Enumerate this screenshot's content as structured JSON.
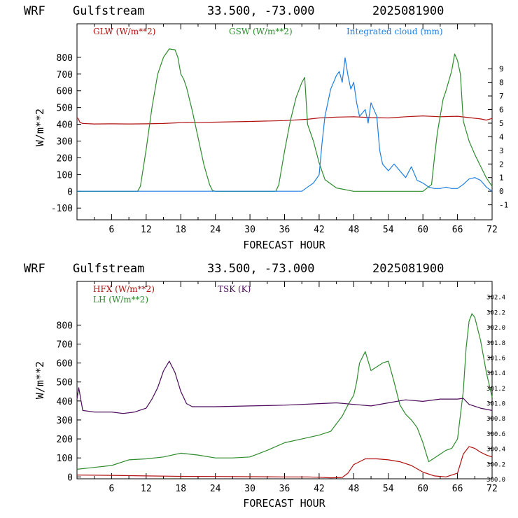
{
  "panels": [
    {
      "header": {
        "model": "WRF",
        "site": "Gulfstream",
        "coords": "33.500, -73.000",
        "date": "2025081900"
      },
      "xlabel": "FORECAST HOUR",
      "ylabel": "W/m**2"
    },
    {
      "header": {
        "model": "WRF",
        "site": "Gulfstream",
        "coords": "33.500, -73.000",
        "date": "2025081900"
      },
      "xlabel": "FORECAST HOUR",
      "ylabel": "W/m**2"
    }
  ],
  "chart_data": [
    {
      "type": "line",
      "xlabel": "FORECAST HOUR",
      "ylabel": "W/m**2",
      "xlim": [
        0,
        72
      ],
      "ylim": [
        -170,
        1000
      ],
      "xticks": [
        6,
        12,
        18,
        24,
        30,
        36,
        42,
        48,
        54,
        60,
        66,
        72
      ],
      "yticks": [
        -100,
        0,
        100,
        200,
        300,
        400,
        500,
        600,
        700,
        800
      ],
      "y2lim": [
        -2.1,
        12.3
      ],
      "y2ticks": [
        -1,
        0,
        1,
        2,
        3,
        4,
        5,
        6,
        7,
        8,
        9
      ],
      "legend_placement": "top",
      "series": [
        {
          "name": "GLW (W/m**2)",
          "color": "#b01010",
          "axis": "left",
          "x": [
            0,
            0.2,
            0.5,
            1,
            3,
            6,
            9,
            12,
            15,
            18,
            19,
            20,
            21,
            24,
            30,
            36,
            40,
            42,
            45,
            48,
            51,
            54,
            57,
            60,
            63,
            66,
            68,
            70,
            71,
            72
          ],
          "y": [
            440,
            435,
            412,
            405,
            402,
            403,
            402,
            403,
            405,
            410,
            411,
            412,
            410,
            413,
            417,
            422,
            430,
            438,
            443,
            445,
            440,
            438,
            445,
            450,
            445,
            448,
            440,
            432,
            425,
            435
          ]
        },
        {
          "name": "GSW (W/m**2)",
          "color": "#2e8b2e",
          "axis": "left",
          "x": [
            0,
            10.5,
            11,
            12,
            13,
            14,
            15,
            16,
            17,
            17.5,
            18,
            18.5,
            19,
            20,
            21,
            22,
            23,
            23.5,
            24,
            34.5,
            35,
            36,
            37,
            38,
            39,
            39.5,
            40,
            41,
            42,
            43,
            45,
            48,
            51,
            54,
            57,
            60,
            61.5,
            62,
            62.5,
            63,
            63.5,
            64,
            65,
            65.5,
            66,
            66.5,
            67,
            68,
            69,
            70,
            71,
            72
          ],
          "y": [
            0,
            0,
            30,
            250,
            500,
            700,
            800,
            850,
            845,
            800,
            700,
            670,
            620,
            480,
            320,
            160,
            40,
            5,
            0,
            0,
            40,
            240,
            420,
            560,
            650,
            680,
            400,
            300,
            170,
            70,
            20,
            0,
            0,
            0,
            0,
            0,
            40,
            200,
            350,
            450,
            550,
            600,
            720,
            820,
            780,
            700,
            420,
            300,
            220,
            150,
            80,
            30
          ]
        },
        {
          "name": "Integrated cloud (mm)",
          "color": "#1e7fe0",
          "axis": "right",
          "x": [
            0,
            39,
            40,
            41,
            42,
            42.5,
            43,
            44,
            45,
            45.5,
            46,
            46.5,
            47,
            47.5,
            48,
            48.5,
            49,
            50,
            50.5,
            51,
            52,
            52.5,
            53,
            54,
            55,
            56,
            57,
            58,
            59,
            60,
            61,
            62,
            63,
            64,
            65,
            66,
            67,
            68,
            69,
            70,
            71,
            72
          ],
          "y": [
            0,
            0,
            0.3,
            0.6,
            1.2,
            3.5,
            5.5,
            7.5,
            8.5,
            8.8,
            8.0,
            9.8,
            8.5,
            7.5,
            8.0,
            6.5,
            5.5,
            6.0,
            5.0,
            6.5,
            5.5,
            3.0,
            2.0,
            1.5,
            2.0,
            1.5,
            1.0,
            1.8,
            0.8,
            0.6,
            0.3,
            0.2,
            0.2,
            0.3,
            0.2,
            0.2,
            0.5,
            0.9,
            1.0,
            0.8,
            0.3,
            0
          ]
        }
      ]
    },
    {
      "type": "line",
      "xlabel": "FORECAST HOUR",
      "ylabel": "W/m**2",
      "xlim": [
        0,
        72
      ],
      "ylim": [
        -10,
        1030
      ],
      "xticks": [
        6,
        12,
        18,
        24,
        30,
        36,
        42,
        48,
        54,
        60,
        66,
        72
      ],
      "yticks": [
        0,
        100,
        200,
        300,
        400,
        500,
        600,
        700,
        800
      ],
      "y2lim": [
        300.0,
        302.6
      ],
      "y2ticks": [
        300.0,
        300.2,
        300.4,
        300.6,
        300.8,
        301.0,
        301.2,
        301.4,
        301.6,
        301.8,
        302.0,
        302.2,
        302.4
      ],
      "legend_placement": "top-left",
      "series": [
        {
          "name": "HFX (W/m**2)",
          "color": "#b01010",
          "axis": "left",
          "x": [
            0,
            6,
            12,
            18,
            24,
            30,
            36,
            40,
            42,
            44,
            46,
            47,
            48,
            50,
            52,
            54,
            56,
            58,
            60,
            62,
            64,
            66,
            67,
            68,
            69,
            70,
            71,
            72
          ],
          "y": [
            10,
            8,
            5,
            3,
            2,
            1,
            0,
            0,
            -2,
            -5,
            -3,
            20,
            65,
            95,
            95,
            90,
            80,
            60,
            25,
            5,
            0,
            20,
            120,
            160,
            150,
            130,
            115,
            105
          ]
        },
        {
          "name": "LH (W/m**2)",
          "color": "#2e8b2e",
          "axis": "left",
          "x": [
            0,
            3,
            6,
            9,
            12,
            15,
            18,
            21,
            24,
            27,
            30,
            33,
            36,
            39,
            42,
            44,
            46,
            47,
            48,
            48.5,
            49,
            50,
            51,
            52,
            53,
            54,
            55,
            56,
            57,
            58,
            59,
            60,
            61,
            62,
            63,
            64,
            65,
            66,
            67,
            67.5,
            68,
            68.5,
            69,
            70,
            71,
            72
          ],
          "y": [
            40,
            50,
            60,
            90,
            95,
            105,
            125,
            115,
            100,
            100,
            105,
            140,
            180,
            200,
            220,
            240,
            320,
            380,
            430,
            500,
            600,
            660,
            560,
            580,
            600,
            610,
            500,
            380,
            330,
            300,
            260,
            180,
            80,
            100,
            120,
            140,
            150,
            200,
            450,
            680,
            820,
            860,
            840,
            720,
            550,
            420
          ]
        },
        {
          "name": "TSK (K)",
          "color": "#4b0a5a",
          "axis": "right",
          "x": [
            0,
            0.3,
            1,
            3,
            6,
            8,
            10,
            12,
            13,
            14,
            15,
            16,
            17,
            18,
            19,
            20,
            21,
            24,
            30,
            36,
            42,
            45,
            48,
            51,
            54,
            57,
            60,
            63,
            66,
            67,
            68,
            70,
            72
          ],
          "y": [
            301.05,
            301.2,
            300.9,
            300.88,
            300.88,
            300.86,
            300.88,
            300.93,
            301.05,
            301.2,
            301.42,
            301.55,
            301.4,
            301.15,
            300.99,
            300.95,
            300.95,
            300.95,
            300.96,
            300.97,
            300.99,
            301.0,
            300.98,
            300.96,
            301.0,
            301.04,
            301.02,
            301.05,
            301.05,
            301.06,
            300.98,
            300.93,
            300.9
          ]
        }
      ]
    }
  ]
}
